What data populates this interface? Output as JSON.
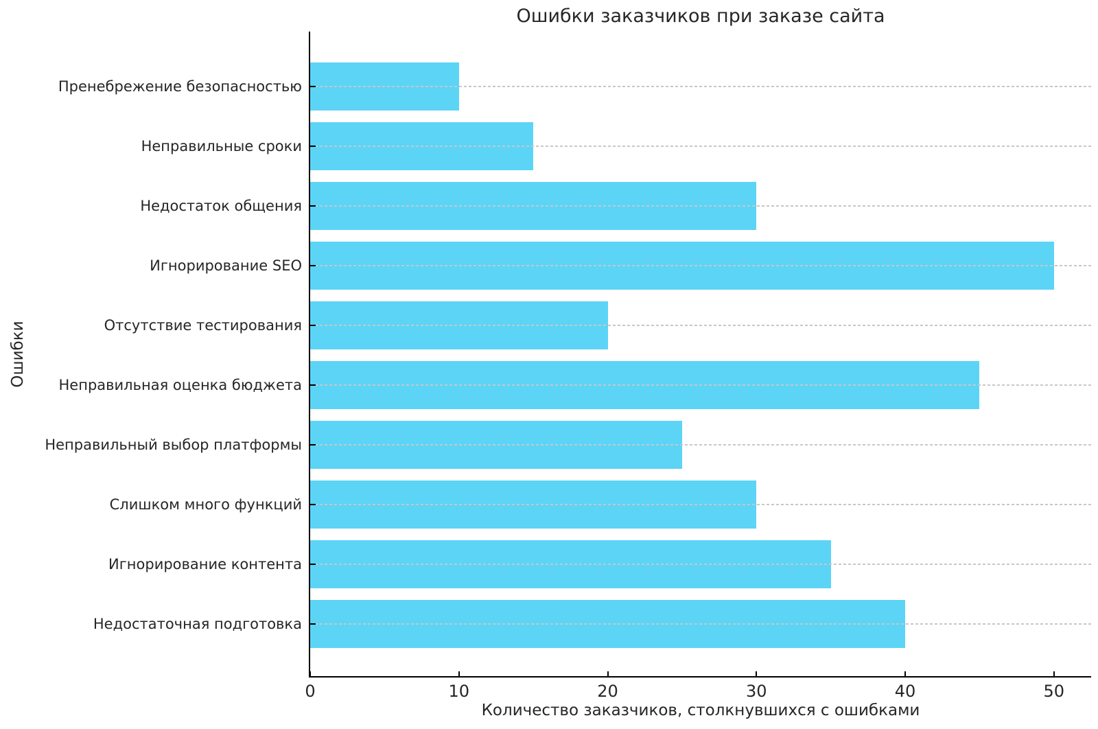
{
  "chart_data": {
    "type": "bar",
    "orientation": "horizontal",
    "title": "Ошибки заказчиков при заказе сайта",
    "xlabel": "Количество заказчиков, столкнувшихся с ошибками",
    "ylabel": "Ошибки",
    "categories": [
      "Пренебрежение безопасностью",
      "Неправильные сроки",
      "Недостаток общения",
      "Игнорирование SEO",
      "Отсутствие тестирования",
      "Неправильная оценка бюджета",
      "Неправильный выбор платформы",
      "Слишком много функций",
      "Игнорирование контента",
      "Недостаточная подготовка"
    ],
    "values": [
      10,
      15,
      30,
      50,
      20,
      45,
      25,
      30,
      35,
      40
    ],
    "x_ticks": [
      0,
      10,
      20,
      30,
      40,
      50
    ],
    "xlim": [
      0,
      52.5
    ],
    "bar_color": "#5CD4F6",
    "grid": "horizontal-dashed",
    "grid_color": "#c7c7c7",
    "axis_color": "#000000"
  }
}
